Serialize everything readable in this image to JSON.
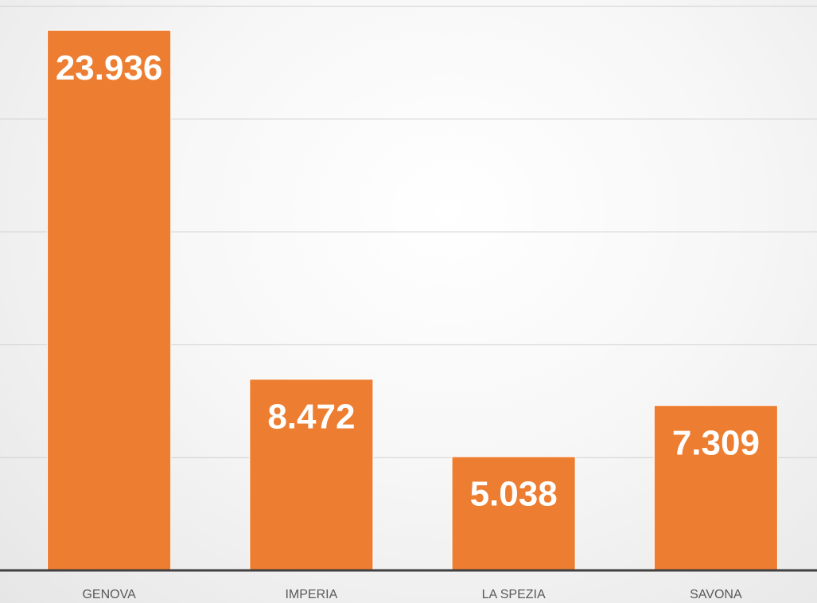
{
  "chart_data": {
    "type": "bar",
    "categories": [
      "GENOVA",
      "IMPERIA",
      "LA SPEZIA",
      "SAVONA"
    ],
    "values": [
      23936,
      8472,
      5038,
      7309
    ],
    "value_labels": [
      "23.936",
      "8.472",
      "5.038",
      "7.309"
    ],
    "color": "#ed7d31",
    "ylim": [
      0,
      25000
    ],
    "yticks": [
      0,
      5000,
      10000,
      15000,
      20000,
      25000
    ],
    "grid": true
  }
}
